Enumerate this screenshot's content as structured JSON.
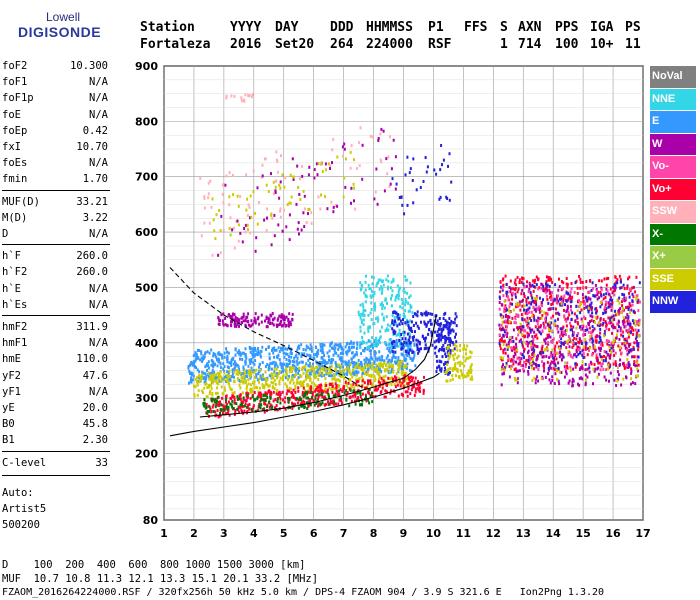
{
  "logo": {
    "line1": "Lowell",
    "line2": "DIGISONDE"
  },
  "header": {
    "labels": [
      "Station",
      "YYYY",
      "DAY",
      "DDD",
      "HHMMSS",
      "P1",
      "FFS",
      "S",
      "AXN",
      "PPS",
      "IGA",
      "PS"
    ],
    "values": [
      "Fortaleza",
      "2016",
      "Set20",
      "264",
      "224000",
      "RSF",
      "1",
      "714",
      "100",
      "10+",
      "11"
    ]
  },
  "params": [
    [
      {
        "name": "foF2",
        "value": "10.300"
      },
      {
        "name": "foF1",
        "value": "N/A"
      },
      {
        "name": "foF1p",
        "value": "N/A"
      },
      {
        "name": "foE",
        "value": "N/A"
      },
      {
        "name": "foEp",
        "value": "0.42"
      },
      {
        "name": "fxI",
        "value": "10.70"
      },
      {
        "name": "foEs",
        "value": "N/A"
      },
      {
        "name": "fmin",
        "value": "1.70"
      }
    ],
    [
      {
        "name": "MUF(D)",
        "value": "33.21"
      },
      {
        "name": "M(D)",
        "value": "3.22"
      },
      {
        "name": "D",
        "value": "N/A"
      }
    ],
    [
      {
        "name": "h`F",
        "value": "260.0"
      },
      {
        "name": "h`F2",
        "value": "260.0"
      },
      {
        "name": "h`E",
        "value": "N/A"
      },
      {
        "name": "h`Es",
        "value": "N/A"
      }
    ],
    [
      {
        "name": "hmF2",
        "value": "311.9"
      },
      {
        "name": "hmF1",
        "value": "N/A"
      },
      {
        "name": "hmE",
        "value": "110.0"
      },
      {
        "name": "yF2",
        "value": "47.6"
      },
      {
        "name": "yF1",
        "value": "N/A"
      },
      {
        "name": "yE",
        "value": "20.0"
      },
      {
        "name": "B0",
        "value": "45.8"
      },
      {
        "name": "B1",
        "value": "2.30"
      }
    ],
    [
      {
        "name": "C-level",
        "value": "33"
      }
    ]
  ],
  "auto": {
    "line1": "Auto:",
    "line2": "Artist5",
    "line3": "500200"
  },
  "footer": {
    "d_line": "D    100  200  400  600  800 1000 1500 3000 [km]",
    "muf_line": "MUF  10.7 10.8 11.3 12.1 13.3 15.1 20.1 33.2 [MHz]",
    "file_line": "FZAOM_2016264224000.RSF / 320fx256h 50 kHz 5.0 km / DPS-4 FZAOM 904 / 3.9 S 321.6 E   Ion2Png 1.3.20"
  },
  "legend": [
    {
      "label": "NoVal",
      "color": "#808080"
    },
    {
      "label": "NNE",
      "color": "#33d6e6"
    },
    {
      "label": "E",
      "color": "#3399ff"
    },
    {
      "label": "W",
      "color": "#aa00aa"
    },
    {
      "label": "Vo-",
      "color": "#ff44aa"
    },
    {
      "label": "Vo+",
      "color": "#ff0033"
    },
    {
      "label": "SSW",
      "color": "#ffb0b8"
    },
    {
      "label": "X-",
      "color": "#007700"
    },
    {
      "label": "X+",
      "color": "#99cc44"
    },
    {
      "label": "SSE",
      "color": "#cccc00"
    },
    {
      "label": "NNW",
      "color": "#2222dd"
    }
  ],
  "chart_data": {
    "type": "scatter",
    "xlim": [
      1,
      17
    ],
    "ylim": [
      80,
      900
    ],
    "x_ticks": [
      1,
      2,
      3,
      4,
      5,
      6,
      7,
      8,
      9,
      10,
      11,
      12,
      13,
      14,
      15,
      16,
      17
    ],
    "y_ticks": [
      80,
      200,
      300,
      400,
      500,
      600,
      700,
      800,
      900
    ],
    "grid": true,
    "legend_position": "right",
    "curves": [
      {
        "name": "solid",
        "style": "solid",
        "points": [
          [
            1.2,
            232
          ],
          [
            2,
            240
          ],
          [
            3,
            248
          ],
          [
            4,
            256
          ],
          [
            5,
            266
          ],
          [
            6,
            276
          ],
          [
            7,
            288
          ],
          [
            8,
            302
          ],
          [
            9,
            318
          ],
          [
            9.6,
            330
          ],
          [
            10,
            338
          ],
          [
            10.2,
            345
          ]
        ]
      },
      {
        "name": "lower-trace",
        "style": "solid",
        "points": [
          [
            2.2,
            266
          ],
          [
            3,
            270
          ],
          [
            4,
            275
          ],
          [
            5,
            282
          ],
          [
            6,
            292
          ],
          [
            7,
            305
          ],
          [
            8,
            320
          ],
          [
            8.6,
            330
          ],
          [
            9,
            336
          ],
          [
            9.4,
            352
          ],
          [
            9.7,
            370
          ],
          [
            9.9,
            395
          ],
          [
            10.1,
            450
          ]
        ]
      },
      {
        "name": "dashed",
        "style": "dashed",
        "points": [
          [
            1.2,
            536
          ],
          [
            2,
            490
          ],
          [
            3,
            450
          ],
          [
            4,
            420
          ],
          [
            5,
            395
          ],
          [
            6,
            368
          ],
          [
            7,
            340
          ],
          [
            7.6,
            320
          ]
        ]
      }
    ],
    "clusters": [
      {
        "series": "E",
        "x": [
          1.8,
          9.4
        ],
        "y": [
          325,
          385
        ],
        "n": 900
      },
      {
        "series": "SSE",
        "x": [
          2.0,
          9.2
        ],
        "y": [
          300,
          345
        ],
        "n": 500
      },
      {
        "series": "Vo+",
        "x": [
          2.4,
          9.7
        ],
        "y": [
          262,
          300
        ],
        "n": 450
      },
      {
        "series": "X-",
        "x": [
          2.3,
          8.0
        ],
        "y": [
          270,
          300
        ],
        "n": 160
      },
      {
        "series": "W",
        "x": [
          2.8,
          5.3
        ],
        "y": [
          428,
          452
        ],
        "n": 140
      },
      {
        "series": "NNE",
        "x": [
          7.5,
          9.3
        ],
        "y": [
          390,
          520
        ],
        "n": 220
      },
      {
        "series": "NNW",
        "x": [
          8.6,
          10.8
        ],
        "y": [
          380,
          455
        ],
        "n": 200
      },
      {
        "series": "NNW",
        "x": [
          10.1,
          10.6
        ],
        "y": [
          340,
          440
        ],
        "n": 80
      },
      {
        "series": "SSE",
        "x": [
          10.4,
          11.3
        ],
        "y": [
          330,
          395
        ],
        "n": 90
      },
      {
        "series": "Vo+",
        "x": [
          12.2,
          16.9
        ],
        "y": [
          350,
          520
        ],
        "n": 500
      },
      {
        "series": "W",
        "x": [
          12.2,
          16.9
        ],
        "y": [
          320,
          505
        ],
        "n": 420
      },
      {
        "series": "NNW",
        "x": [
          12.2,
          16.9
        ],
        "y": [
          350,
          510
        ],
        "n": 220
      },
      {
        "series": "Vo-",
        "x": [
          12.2,
          16.9
        ],
        "y": [
          350,
          500
        ],
        "n": 200
      },
      {
        "series": "SSE",
        "x": [
          12.2,
          16.9
        ],
        "y": [
          330,
          480
        ],
        "n": 120
      },
      {
        "series": "SSW",
        "x": [
          2.2,
          8.6
        ],
        "y": [
          545,
          700
        ],
        "n": 90
      },
      {
        "series": "W",
        "x": [
          2.8,
          8.8
        ],
        "y": [
          540,
          690
        ],
        "n": 80
      },
      {
        "series": "SSE",
        "x": [
          2.6,
          7.5
        ],
        "y": [
          580,
          660
        ],
        "n": 60
      },
      {
        "series": "NNW",
        "x": [
          8.6,
          10.6
        ],
        "y": [
          620,
          730
        ],
        "n": 35
      },
      {
        "series": "SSW",
        "x": [
          3.0,
          4.2
        ],
        "y": [
          835,
          848
        ],
        "n": 14
      }
    ]
  }
}
